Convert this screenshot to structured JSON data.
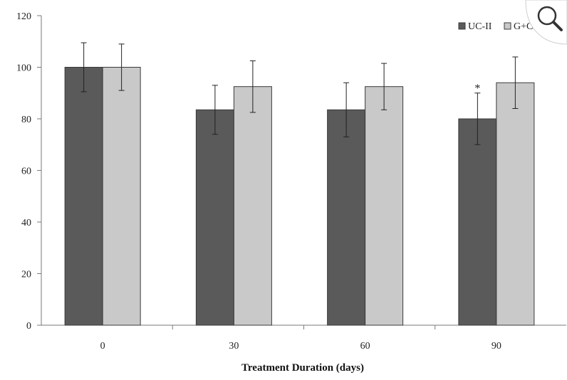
{
  "chart_data": {
    "type": "bar",
    "categories": [
      "0",
      "30",
      "60",
      "90"
    ],
    "series": [
      {
        "name": "UC-II",
        "color": "#5a5a5a",
        "values": [
          100,
          83.5,
          83.5,
          80
        ],
        "errors": [
          9.5,
          9.5,
          10.5,
          10
        ]
      },
      {
        "name": "G+C",
        "color": "#c9c9c9",
        "values": [
          100,
          92.5,
          92.5,
          94
        ],
        "errors": [
          9,
          10,
          9,
          10
        ]
      }
    ],
    "ylim": [
      0,
      120
    ],
    "yticks": [
      "0",
      "20",
      "40",
      "60",
      "80",
      "100",
      "120"
    ],
    "xlabel": "Treatment Duration (days)",
    "ylabel": "",
    "title": "",
    "legend_position": "top-right",
    "annotations": [
      {
        "series": 0,
        "category": 3,
        "text": "*"
      }
    ]
  },
  "zoom_control": {
    "icon": "magnifier-icon"
  }
}
